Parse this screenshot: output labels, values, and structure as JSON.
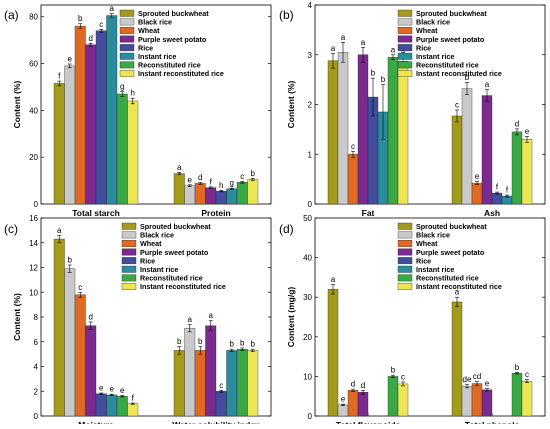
{
  "series_names": [
    "Sprouted buckwheat",
    "Black rice",
    "Wheat",
    "Purple sweet potato",
    "Rice",
    "Instant rice",
    "Reconstituted rice",
    "Instant reconstituted rice"
  ],
  "series_colors": [
    "#a59b1b",
    "#c9c9c9",
    "#e06a24",
    "#7b2b8e",
    "#424da0",
    "#2a8c9c",
    "#3aa845",
    "#ece655"
  ],
  "chart_data": [
    {
      "type": "bar",
      "panel_label": "(a)",
      "title": "",
      "xlabel": "",
      "ylabel": "Content (%)",
      "ylim": [
        0,
        85
      ],
      "yticks": [
        0,
        20,
        40,
        60,
        80
      ],
      "legend": "top-right",
      "categories": [
        "Total starch",
        "Protein"
      ],
      "series": [
        {
          "name": "Sprouted buckwheat",
          "values": [
            51.5,
            13.0
          ],
          "errors": [
            1.0,
            0.5
          ],
          "letters": [
            "f",
            "a"
          ]
        },
        {
          "name": "Black rice",
          "values": [
            59.0,
            7.8
          ],
          "errors": [
            0.8,
            0.4
          ],
          "letters": [
            "e",
            "e"
          ]
        },
        {
          "name": "Wheat",
          "values": [
            76.0,
            8.8
          ],
          "errors": [
            1.0,
            0.4
          ],
          "letters": [
            "b",
            "d"
          ]
        },
        {
          "name": "Purple sweet potato",
          "values": [
            68.0,
            7.0
          ],
          "errors": [
            0.6,
            0.3
          ],
          "letters": [
            "d",
            "f"
          ]
        },
        {
          "name": "Rice",
          "values": [
            74.0,
            5.5
          ],
          "errors": [
            0.6,
            0.3
          ],
          "letters": [
            "c",
            "h"
          ]
        },
        {
          "name": "Instant rice",
          "values": [
            80.5,
            6.5
          ],
          "errors": [
            0.8,
            0.3
          ],
          "letters": [
            "a",
            "g"
          ]
        },
        {
          "name": "Reconstituted rice",
          "values": [
            47.0,
            9.3
          ],
          "errors": [
            1.0,
            0.4
          ],
          "letters": [
            "g",
            "c"
          ]
        },
        {
          "name": "Instant reconstituted rice",
          "values": [
            44.0,
            10.5
          ],
          "errors": [
            1.2,
            0.4
          ],
          "letters": [
            "h",
            "b"
          ]
        }
      ]
    },
    {
      "type": "bar",
      "panel_label": "(b)",
      "title": "",
      "xlabel": "",
      "ylabel": "Content (%)",
      "ylim": [
        0,
        4
      ],
      "yticks": [
        0,
        1,
        2,
        3,
        4
      ],
      "legend": "top-right",
      "categories": [
        "Fat",
        "Ash"
      ],
      "series": [
        {
          "name": "Sprouted buckwheat",
          "values": [
            2.88,
            1.77
          ],
          "errors": [
            0.15,
            0.12
          ],
          "letters": [
            "a",
            "c"
          ]
        },
        {
          "name": "Black rice",
          "values": [
            3.05,
            2.32
          ],
          "errors": [
            0.2,
            0.12
          ],
          "letters": [
            "a",
            "b"
          ]
        },
        {
          "name": "Wheat",
          "values": [
            1.0,
            0.42
          ],
          "errors": [
            0.06,
            0.03
          ],
          "letters": [
            "c",
            "e"
          ]
        },
        {
          "name": "Purple sweet potato",
          "values": [
            3.0,
            2.18
          ],
          "errors": [
            0.15,
            0.12
          ],
          "letters": [
            "a",
            "a"
          ]
        },
        {
          "name": "Rice",
          "values": [
            2.15,
            0.22
          ],
          "errors": [
            0.38,
            0.02
          ],
          "letters": [
            "b",
            "f"
          ]
        },
        {
          "name": "Instant rice",
          "values": [
            1.85,
            0.16
          ],
          "errors": [
            0.55,
            0.02
          ],
          "letters": [
            "b",
            "f"
          ]
        },
        {
          "name": "Reconstituted rice",
          "values": [
            2.95,
            1.45
          ],
          "errors": [
            0.05,
            0.06
          ],
          "letters": [
            "a",
            "d"
          ]
        },
        {
          "name": "Instant reconstituted rice",
          "values": [
            2.87,
            1.3
          ],
          "errors": [
            0.07,
            0.06
          ],
          "letters": [
            "a",
            "e"
          ]
        }
      ]
    },
    {
      "type": "bar",
      "panel_label": "(c)",
      "title": "",
      "xlabel": "",
      "ylabel": "Content (%)",
      "ylim": [
        0,
        16
      ],
      "yticks": [
        0,
        2,
        4,
        6,
        8,
        10,
        12,
        14,
        16
      ],
      "legend": "top-right",
      "categories": [
        "Moisture",
        "Water solubility index"
      ],
      "series": [
        {
          "name": "Sprouted buckwheat",
          "values": [
            14.3,
            5.3
          ],
          "errors": [
            0.3,
            0.3
          ],
          "letters": [
            "a",
            "b"
          ]
        },
        {
          "name": "Black rice",
          "values": [
            11.9,
            7.1
          ],
          "errors": [
            0.3,
            0.3
          ],
          "letters": [
            "b",
            "a"
          ]
        },
        {
          "name": "Wheat",
          "values": [
            9.8,
            5.3
          ],
          "errors": [
            0.2,
            0.3
          ],
          "letters": [
            "c",
            "b"
          ]
        },
        {
          "name": "Purple sweet potato",
          "values": [
            7.3,
            7.3
          ],
          "errors": [
            0.3,
            0.4
          ],
          "letters": [
            "d",
            "a"
          ]
        },
        {
          "name": "Rice",
          "values": [
            1.8,
            2.0
          ],
          "errors": [
            0.06,
            0.08
          ],
          "letters": [
            "e",
            "c"
          ]
        },
        {
          "name": "Instant rice",
          "values": [
            1.7,
            5.3
          ],
          "errors": [
            0.06,
            0.1
          ],
          "letters": [
            "e",
            "b"
          ]
        },
        {
          "name": "Reconstituted rice",
          "values": [
            1.6,
            5.4
          ],
          "errors": [
            0.06,
            0.1
          ],
          "letters": [
            "e",
            "b"
          ]
        },
        {
          "name": "Instant reconstituted rice",
          "values": [
            1.0,
            5.3
          ],
          "errors": [
            0.05,
            0.1
          ],
          "letters": [
            "f",
            "b"
          ]
        }
      ]
    },
    {
      "type": "bar",
      "panel_label": "(d)",
      "title": "",
      "xlabel": "",
      "ylabel": "Content (mg/g)",
      "ylim": [
        0,
        50
      ],
      "yticks": [
        0,
        10,
        20,
        30,
        40,
        50
      ],
      "legend": "top-right",
      "categories": [
        "Total flavonoids",
        "Total phenols"
      ],
      "series": [
        {
          "name": "Sprouted buckwheat",
          "values": [
            32.0,
            28.8
          ],
          "errors": [
            1.2,
            1.2
          ],
          "letters": [
            "a",
            "a"
          ]
        },
        {
          "name": "Black rice",
          "values": [
            2.8,
            7.5
          ],
          "errors": [
            0.2,
            0.4
          ],
          "letters": [
            "e",
            "de"
          ]
        },
        {
          "name": "Wheat",
          "values": [
            6.5,
            8.2
          ],
          "errors": [
            0.3,
            0.5
          ],
          "letters": [
            "d",
            "cd"
          ]
        },
        {
          "name": "Purple sweet potato",
          "values": [
            6.0,
            6.6
          ],
          "errors": [
            0.5,
            0.3
          ],
          "letters": [
            "d",
            "e"
          ]
        },
        {
          "name": "Rice",
          "values": [
            0.0,
            0.0
          ],
          "errors": [
            0.0,
            0.0
          ],
          "letters": [
            "",
            ""
          ]
        },
        {
          "name": "Instant rice",
          "values": [
            0.0,
            0.0
          ],
          "errors": [
            0.0,
            0.0
          ],
          "letters": [
            "",
            ""
          ]
        },
        {
          "name": "Reconstituted rice",
          "values": [
            10.0,
            10.8
          ],
          "errors": [
            0.3,
            0.2
          ],
          "letters": [
            "b",
            "b"
          ]
        },
        {
          "name": "Instant reconstituted rice",
          "values": [
            8.1,
            8.8
          ],
          "errors": [
            0.5,
            0.4
          ],
          "letters": [
            "c",
            "c"
          ]
        }
      ]
    }
  ]
}
